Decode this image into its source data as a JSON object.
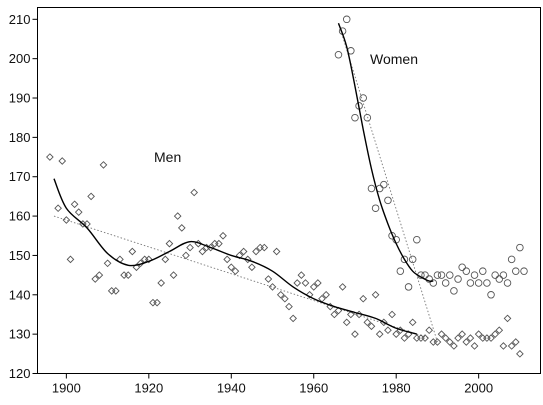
{
  "chart_data": {
    "type": "scatter",
    "title": "",
    "xlabel": "",
    "ylabel": "",
    "xlim": [
      1893,
      2015
    ],
    "ylim": [
      120,
      213
    ],
    "x_ticks": [
      1900,
      1920,
      1940,
      1960,
      1980,
      2000
    ],
    "y_ticks": [
      120,
      130,
      140,
      150,
      160,
      170,
      180,
      190,
      200,
      210
    ],
    "grid": false,
    "annotations": [
      {
        "text": "Men",
        "x": 1922,
        "y": 175
      },
      {
        "text": "Women",
        "x": 1978,
        "y": 200
      }
    ],
    "series": [
      {
        "marker": "diamond",
        "points": [
          [
            1896,
            175
          ],
          [
            1898,
            162
          ],
          [
            1899,
            174
          ],
          [
            1900,
            159
          ],
          [
            1901,
            149
          ],
          [
            1902,
            163
          ],
          [
            1903,
            161
          ],
          [
            1904,
            158
          ],
          [
            1905,
            158
          ],
          [
            1906,
            165
          ],
          [
            1907,
            144
          ],
          [
            1908,
            145
          ],
          [
            1909,
            173
          ],
          [
            1910,
            148
          ],
          [
            1911,
            141
          ],
          [
            1912,
            141
          ],
          [
            1913,
            149
          ],
          [
            1914,
            145
          ],
          [
            1915,
            145
          ],
          [
            1916,
            151
          ],
          [
            1917,
            147
          ],
          [
            1918,
            148
          ],
          [
            1919,
            149
          ],
          [
            1920,
            149
          ],
          [
            1921,
            138
          ],
          [
            1922,
            138
          ],
          [
            1923,
            143
          ],
          [
            1924,
            149
          ],
          [
            1925,
            153
          ],
          [
            1926,
            145
          ],
          [
            1927,
            160
          ],
          [
            1928,
            157
          ],
          [
            1929,
            150
          ],
          [
            1930,
            152
          ],
          [
            1931,
            166
          ],
          [
            1932,
            153
          ],
          [
            1933,
            151
          ],
          [
            1934,
            152
          ],
          [
            1935,
            152
          ],
          [
            1936,
            153
          ],
          [
            1937,
            153
          ],
          [
            1938,
            155
          ],
          [
            1939,
            149
          ],
          [
            1940,
            147
          ],
          [
            1941,
            146
          ],
          [
            1942,
            150
          ],
          [
            1943,
            151
          ],
          [
            1944,
            149
          ],
          [
            1945,
            147
          ],
          [
            1946,
            151
          ],
          [
            1947,
            152
          ],
          [
            1948,
            152
          ],
          [
            1949,
            144
          ],
          [
            1950,
            142
          ],
          [
            1951,
            151
          ],
          [
            1952,
            140
          ],
          [
            1953,
            139
          ],
          [
            1954,
            137
          ],
          [
            1955,
            134
          ],
          [
            1956,
            143
          ],
          [
            1957,
            145
          ],
          [
            1958,
            143
          ],
          [
            1959,
            140
          ],
          [
            1960,
            142
          ],
          [
            1961,
            143
          ],
          [
            1962,
            139
          ],
          [
            1963,
            140
          ],
          [
            1964,
            137
          ],
          [
            1965,
            135
          ],
          [
            1966,
            136
          ],
          [
            1967,
            142
          ],
          [
            1968,
            133
          ],
          [
            1969,
            135
          ],
          [
            1970,
            130
          ],
          [
            1971,
            135
          ],
          [
            1972,
            139
          ],
          [
            1973,
            133
          ],
          [
            1974,
            132
          ],
          [
            1975,
            140
          ],
          [
            1976,
            130
          ],
          [
            1977,
            133
          ],
          [
            1978,
            131
          ],
          [
            1979,
            135
          ],
          [
            1980,
            130
          ],
          [
            1981,
            131
          ],
          [
            1982,
            129
          ],
          [
            1983,
            130
          ],
          [
            1984,
            133
          ],
          [
            1985,
            129
          ],
          [
            1986,
            129
          ],
          [
            1987,
            129
          ],
          [
            1988,
            131
          ],
          [
            1989,
            128
          ],
          [
            1990,
            128
          ],
          [
            1991,
            130
          ],
          [
            1992,
            129
          ],
          [
            1993,
            128
          ],
          [
            1994,
            127
          ],
          [
            1995,
            129
          ],
          [
            1996,
            130
          ],
          [
            1997,
            128
          ],
          [
            1998,
            129
          ],
          [
            1999,
            127
          ],
          [
            2000,
            130
          ],
          [
            2001,
            129
          ],
          [
            2002,
            129
          ],
          [
            2003,
            129
          ],
          [
            2004,
            130
          ],
          [
            2005,
            131
          ],
          [
            2006,
            127
          ],
          [
            2007,
            134
          ],
          [
            2008,
            127
          ],
          [
            2009,
            128
          ],
          [
            2010,
            125
          ]
        ]
      },
      {
        "marker": "circle",
        "points": [
          [
            1966,
            201
          ],
          [
            1967,
            207
          ],
          [
            1968,
            210
          ],
          [
            1969,
            202
          ],
          [
            1970,
            185
          ],
          [
            1971,
            188
          ],
          [
            1972,
            190
          ],
          [
            1973,
            185
          ],
          [
            1974,
            167
          ],
          [
            1975,
            162
          ],
          [
            1976,
            167
          ],
          [
            1977,
            168
          ],
          [
            1978,
            164
          ],
          [
            1979,
            155
          ],
          [
            1980,
            154
          ],
          [
            1981,
            146
          ],
          [
            1982,
            149
          ],
          [
            1983,
            142
          ],
          [
            1984,
            149
          ],
          [
            1985,
            154
          ],
          [
            1986,
            145
          ],
          [
            1987,
            145
          ],
          [
            1988,
            144
          ],
          [
            1989,
            143
          ],
          [
            1990,
            145
          ],
          [
            1991,
            145
          ],
          [
            1992,
            143
          ],
          [
            1993,
            145
          ],
          [
            1994,
            141
          ],
          [
            1995,
            144
          ],
          [
            1996,
            147
          ],
          [
            1997,
            146
          ],
          [
            1998,
            143
          ],
          [
            1999,
            145
          ],
          [
            2000,
            143
          ],
          [
            2001,
            146
          ],
          [
            2002,
            143
          ],
          [
            2003,
            140
          ],
          [
            2004,
            145
          ],
          [
            2005,
            144
          ],
          [
            2006,
            145
          ],
          [
            2007,
            143
          ],
          [
            2008,
            149
          ],
          [
            2009,
            146
          ],
          [
            2010,
            152
          ],
          [
            2011,
            146
          ]
        ]
      }
    ],
    "smooth_curves": [
      {
        "points": [
          [
            1897,
            169.5
          ],
          [
            1900,
            162
          ],
          [
            1905,
            157
          ],
          [
            1910,
            150.5
          ],
          [
            1915,
            147.5
          ],
          [
            1920,
            148.5
          ],
          [
            1925,
            151
          ],
          [
            1930,
            153.5
          ],
          [
            1935,
            152
          ],
          [
            1940,
            150
          ],
          [
            1945,
            148.5
          ],
          [
            1950,
            146
          ],
          [
            1955,
            142
          ],
          [
            1960,
            139
          ],
          [
            1965,
            137
          ],
          [
            1970,
            135.5
          ],
          [
            1975,
            134
          ],
          [
            1980,
            131.5
          ],
          [
            1985,
            130
          ]
        ]
      },
      {
        "points": [
          [
            1966,
            209
          ],
          [
            1968,
            203
          ],
          [
            1970,
            193
          ],
          [
            1972,
            182
          ],
          [
            1974,
            172
          ],
          [
            1976,
            164
          ],
          [
            1978,
            158
          ],
          [
            1980,
            153
          ],
          [
            1982,
            149
          ],
          [
            1984,
            146
          ],
          [
            1986,
            144.5
          ],
          [
            1988,
            143.5
          ],
          [
            1989,
            143.5
          ]
        ]
      }
    ],
    "trend_lines": [
      {
        "from": [
          1897,
          160
        ],
        "to": [
          1988,
          129
        ]
      },
      {
        "from": [
          1966,
          209
        ],
        "to": [
          1990,
          128
        ]
      }
    ]
  }
}
